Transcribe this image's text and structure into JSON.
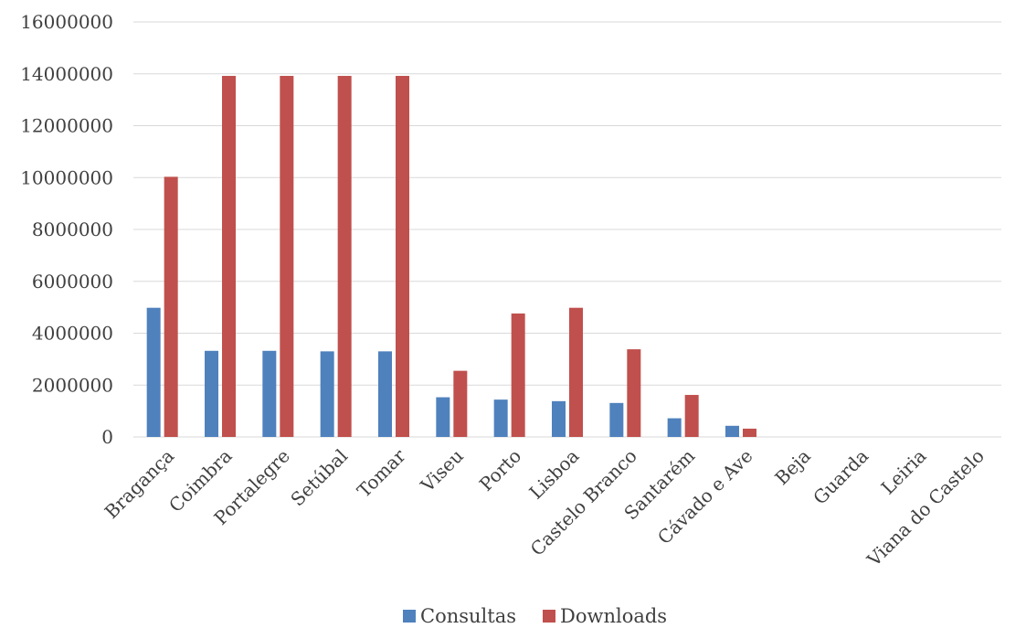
{
  "chart_data": {
    "type": "bar",
    "title": "",
    "xlabel": "",
    "ylabel": "",
    "ylim": [
      0,
      16000000
    ],
    "y_ticks": [
      "0",
      "2000000",
      "4000000",
      "6000000",
      "8000000",
      "10000000",
      "12000000",
      "14000000",
      "16000000"
    ],
    "grid": true,
    "legend_position": "bottom",
    "categories": [
      "Bragança",
      "Coimbra",
      "Portalegre",
      "Setúbal",
      "Tomar",
      "Viseu",
      "Porto",
      "Lisboa",
      "Castelo Branco",
      "Santarém",
      "Cávado e Ave",
      "Beja",
      "Guarda",
      "Leiria",
      "Viana do Castelo"
    ],
    "series": [
      {
        "name": "Consultas",
        "color": "#4f81bd",
        "values": [
          4980000,
          3320000,
          3320000,
          3300000,
          3300000,
          1530000,
          1440000,
          1380000,
          1310000,
          720000,
          430000,
          0,
          0,
          0,
          0
        ]
      },
      {
        "name": "Downloads",
        "color": "#c0504d",
        "values": [
          10030000,
          13920000,
          13920000,
          13920000,
          13920000,
          2550000,
          4760000,
          4980000,
          3380000,
          1620000,
          320000,
          0,
          0,
          0,
          0
        ]
      }
    ]
  }
}
